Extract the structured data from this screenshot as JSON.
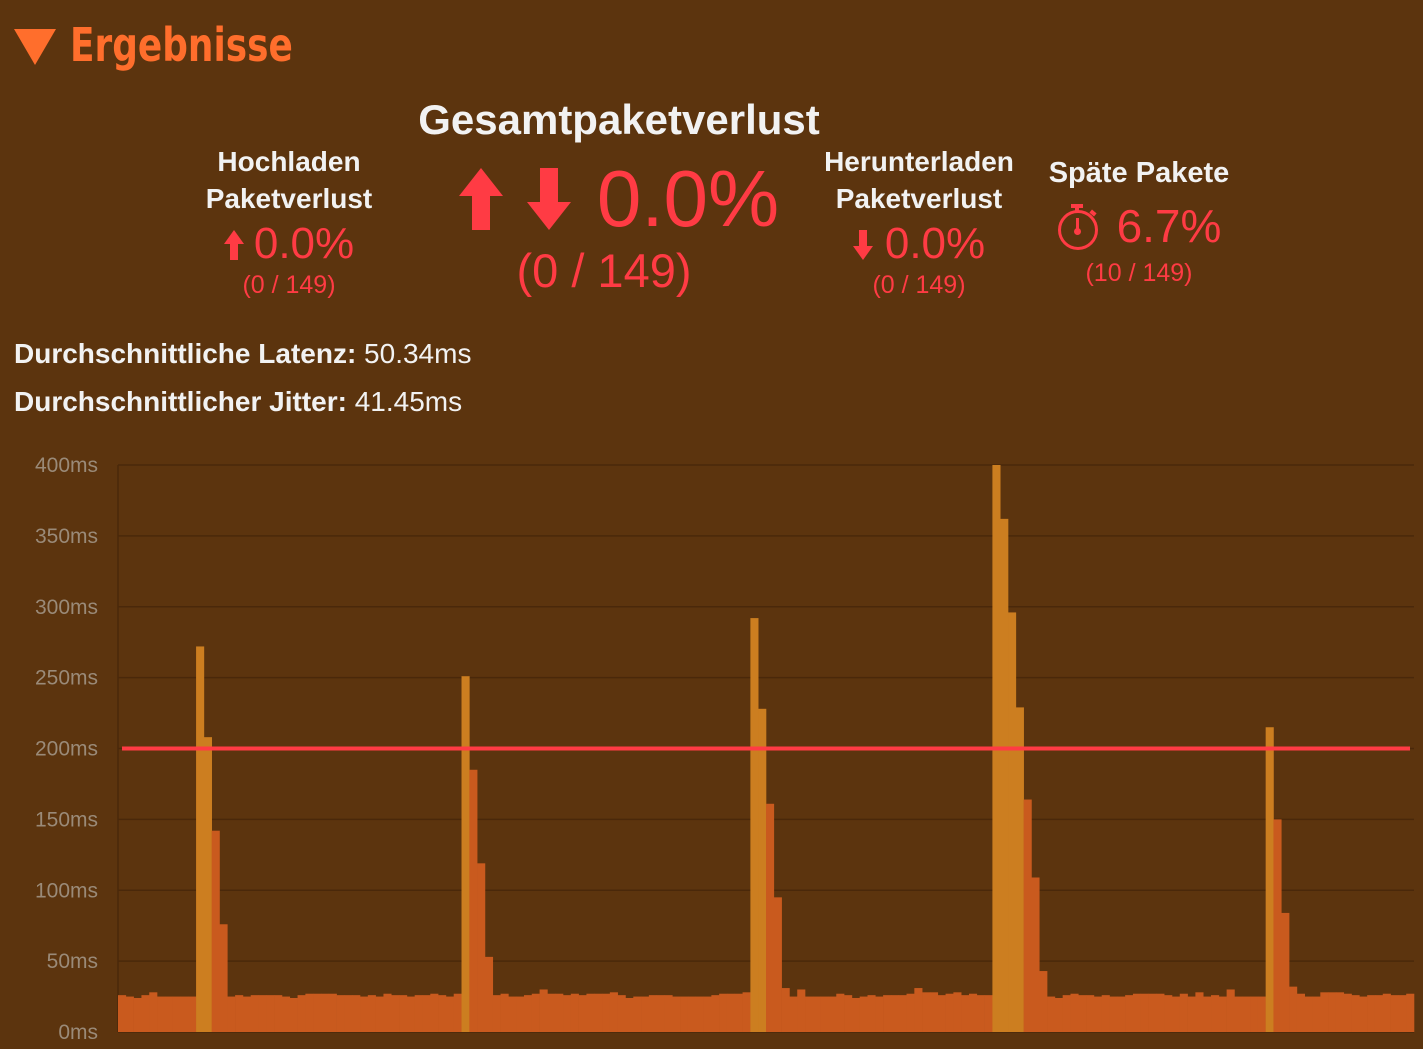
{
  "section": {
    "title": "Ergebnisse"
  },
  "upload": {
    "label_line1": "Hochladen",
    "label_line2": "Paketverlust",
    "value": "0.0%",
    "count": "(0 / 149)"
  },
  "total": {
    "label": "Gesamtpaketverlust",
    "value": "0.0%",
    "count": "(0 / 149)"
  },
  "download": {
    "label_line1": "Herunterladen",
    "label_line2": "Paketverlust",
    "value": "0.0%",
    "count": "(0 / 149)"
  },
  "late": {
    "label": "Späte Pakete",
    "value": "6.7%",
    "count": "(10 / 149)"
  },
  "latency": {
    "label": "Durchschnittliche Latenz:",
    "value": "50.34ms"
  },
  "jitter": {
    "label": "Durchschnittlicher Jitter:",
    "value": "41.45ms"
  },
  "colors": {
    "background": "#5c340e",
    "accent": "#ff6e2c",
    "loss": "#ff3b44",
    "latency_bar": "#c95a1e",
    "jitter_bar": "#cc7e20",
    "threshold_line": "#ff3b44"
  },
  "chart_data": {
    "type": "bar",
    "ylim": [
      0,
      400
    ],
    "y_ticks": [
      "0ms",
      "50ms",
      "100ms",
      "150ms",
      "200ms",
      "250ms",
      "300ms",
      "350ms",
      "400ms"
    ],
    "threshold": 200,
    "grid": true,
    "series": [
      {
        "values": [
          26,
          25,
          24,
          26,
          28,
          25,
          25,
          25,
          25,
          25,
          272,
          208,
          142,
          76,
          25,
          26,
          25,
          26,
          26,
          26,
          26,
          25,
          24,
          26,
          27,
          27,
          27,
          27,
          26,
          26,
          26,
          25,
          26,
          25,
          27,
          26,
          26,
          25,
          26,
          26,
          27,
          26,
          25,
          27,
          251,
          185,
          119,
          53,
          26,
          27,
          25,
          25,
          26,
          27,
          30,
          27,
          27,
          26,
          27,
          26,
          27,
          27,
          27,
          28,
          26,
          24,
          25,
          25,
          26,
          26,
          26,
          25,
          25,
          25,
          25,
          25,
          26,
          27,
          27,
          27,
          28,
          292,
          228,
          161,
          95,
          31,
          25,
          30,
          25,
          25,
          25,
          25,
          27,
          26,
          24,
          25,
          26,
          25,
          26,
          26,
          26,
          27,
          31,
          28,
          28,
          26,
          27,
          28,
          26,
          27,
          26,
          26,
          400,
          362,
          296,
          229,
          164,
          109,
          43,
          25,
          24,
          26,
          27,
          26,
          26,
          25,
          26,
          25,
          25,
          26,
          27,
          27,
          27,
          27,
          26,
          25,
          27,
          25,
          28,
          25,
          26,
          25,
          30,
          25,
          25,
          25,
          25,
          215,
          150,
          84,
          32,
          27,
          25,
          25,
          28,
          28,
          28,
          27,
          26,
          25,
          26,
          26,
          27,
          26,
          26,
          27
        ]
      }
    ],
    "highlight_ranges": [
      [
        10,
        11
      ],
      [
        44,
        44
      ],
      [
        81,
        82
      ],
      [
        112,
        115
      ],
      [
        147,
        147
      ]
    ]
  }
}
